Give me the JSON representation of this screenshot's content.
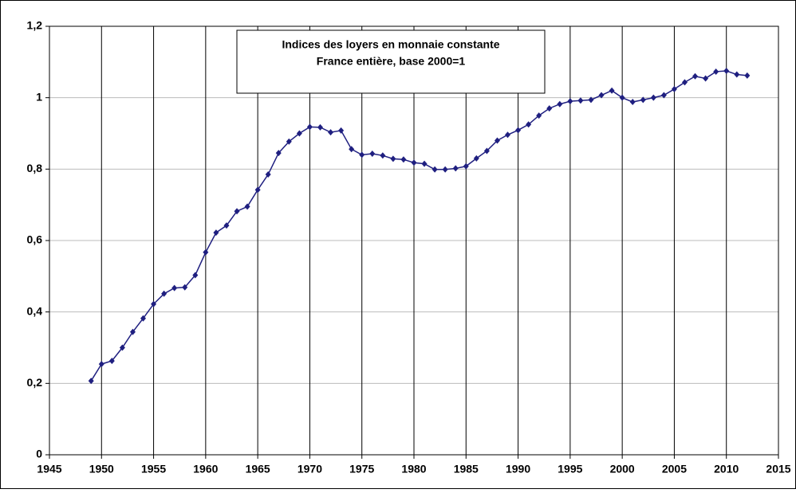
{
  "chart_data": {
    "type": "line",
    "title": "Indices des loyers en monnaie constante",
    "subtitle": "France entière, base 2000=1",
    "x": [
      1949,
      1950,
      1951,
      1952,
      1953,
      1954,
      1955,
      1956,
      1957,
      1958,
      1959,
      1960,
      1961,
      1962,
      1963,
      1964,
      1965,
      1966,
      1967,
      1968,
      1969,
      1970,
      1971,
      1972,
      1973,
      1974,
      1975,
      1976,
      1977,
      1978,
      1979,
      1980,
      1981,
      1982,
      1983,
      1984,
      1985,
      1986,
      1987,
      1988,
      1989,
      1990,
      1991,
      1992,
      1993,
      1994,
      1995,
      1996,
      1997,
      1998,
      1999,
      2000,
      2001,
      2002,
      2003,
      2004,
      2005,
      2006,
      2007,
      2008,
      2009,
      2010,
      2011,
      2012
    ],
    "series": [
      {
        "color": "#1f1f80",
        "values": [
          0.207,
          0.254,
          0.263,
          0.3,
          0.344,
          0.382,
          0.422,
          0.451,
          0.467,
          0.469,
          0.503,
          0.567,
          0.622,
          0.642,
          0.682,
          0.695,
          0.742,
          0.785,
          0.845,
          0.877,
          0.9,
          0.918,
          0.917,
          0.903,
          0.908,
          0.856,
          0.84,
          0.843,
          0.838,
          0.829,
          0.827,
          0.818,
          0.815,
          0.799,
          0.799,
          0.802,
          0.808,
          0.83,
          0.851,
          0.88,
          0.896,
          0.909,
          0.925,
          0.95,
          0.97,
          0.982,
          0.99,
          0.992,
          0.994,
          1.007,
          1.02,
          1.0,
          0.988,
          0.994,
          1.0,
          1.007,
          1.024,
          1.043,
          1.06,
          1.054,
          1.073,
          1.075,
          1.065,
          1.062
        ]
      }
    ],
    "xlim": [
      1945,
      2015
    ],
    "xticks": [
      1945,
      1950,
      1955,
      1960,
      1965,
      1970,
      1975,
      1980,
      1985,
      1990,
      1995,
      2000,
      2005,
      2010,
      2015
    ],
    "ylim": [
      0,
      1.2
    ],
    "yticks": [
      0,
      {
        "value": 0.2,
        "label": "0,2"
      },
      {
        "value": 0.4,
        "label": "0,4"
      },
      {
        "value": 0.6,
        "label": "0,6"
      },
      {
        "value": 0.8,
        "label": "0,8"
      },
      1,
      {
        "value": 1.2,
        "label": "1,2"
      }
    ],
    "grid": true
  }
}
